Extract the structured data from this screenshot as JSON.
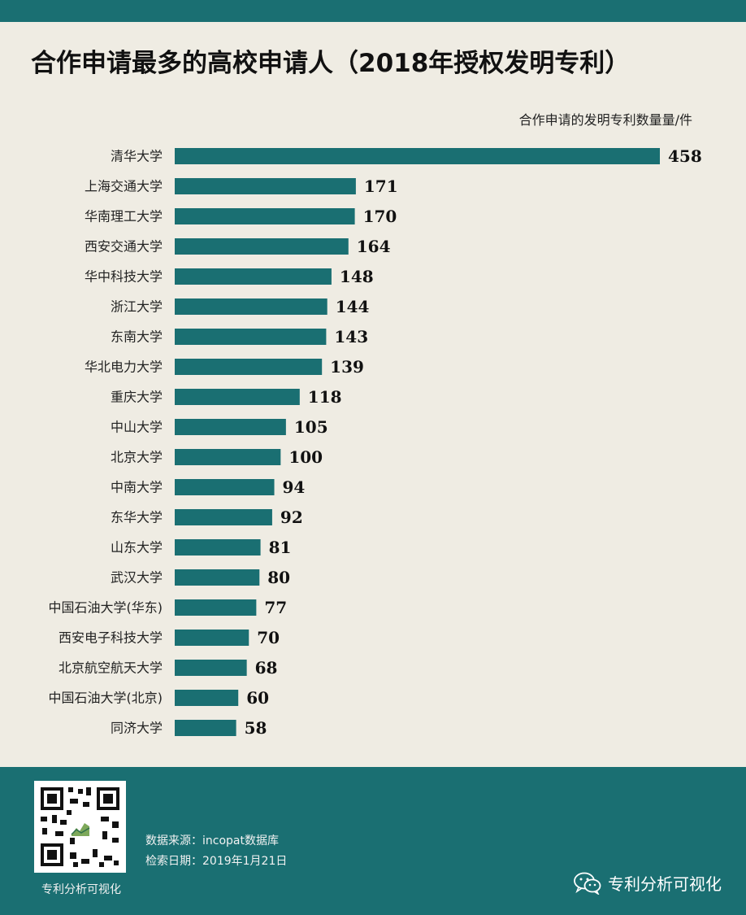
{
  "title": "合作申请最多的高校申请人（2018年授权发明专利）",
  "unit_label": "合作申请的发明专利数量量/件",
  "colors": {
    "bar": "#1a6f72",
    "background": "#efece3",
    "footer": "#1a6f72"
  },
  "chart_data": {
    "type": "bar",
    "orientation": "horizontal",
    "categories": [
      "清华大学",
      "上海交通大学",
      "华南理工大学",
      "西安交通大学",
      "华中科技大学",
      "浙江大学",
      "东南大学",
      "华北电力大学",
      "重庆大学",
      "中山大学",
      "北京大学",
      "中南大学",
      "东华大学",
      "山东大学",
      "武汉大学",
      "中国石油大学(华东)",
      "西安电子科技大学",
      "北京航空航天大学",
      "中国石油大学(北京)",
      "同济大学"
    ],
    "values": [
      458,
      171,
      170,
      164,
      148,
      144,
      143,
      139,
      118,
      105,
      100,
      94,
      92,
      81,
      80,
      77,
      70,
      68,
      60,
      58
    ],
    "title": "合作申请最多的高校申请人（2018年授权发明专利）",
    "xlabel": "合作申请的发明专利数量量/件",
    "ylabel": "",
    "xlim": [
      0,
      458
    ],
    "grid": false,
    "data_labels": true
  },
  "footer": {
    "qr_caption": "专利分析可视化",
    "source": "数据来源：incopat数据库",
    "date": "检索日期：2019年1月21日",
    "brand": "专利分析可视化",
    "brand_icon": "wechat-icon"
  }
}
